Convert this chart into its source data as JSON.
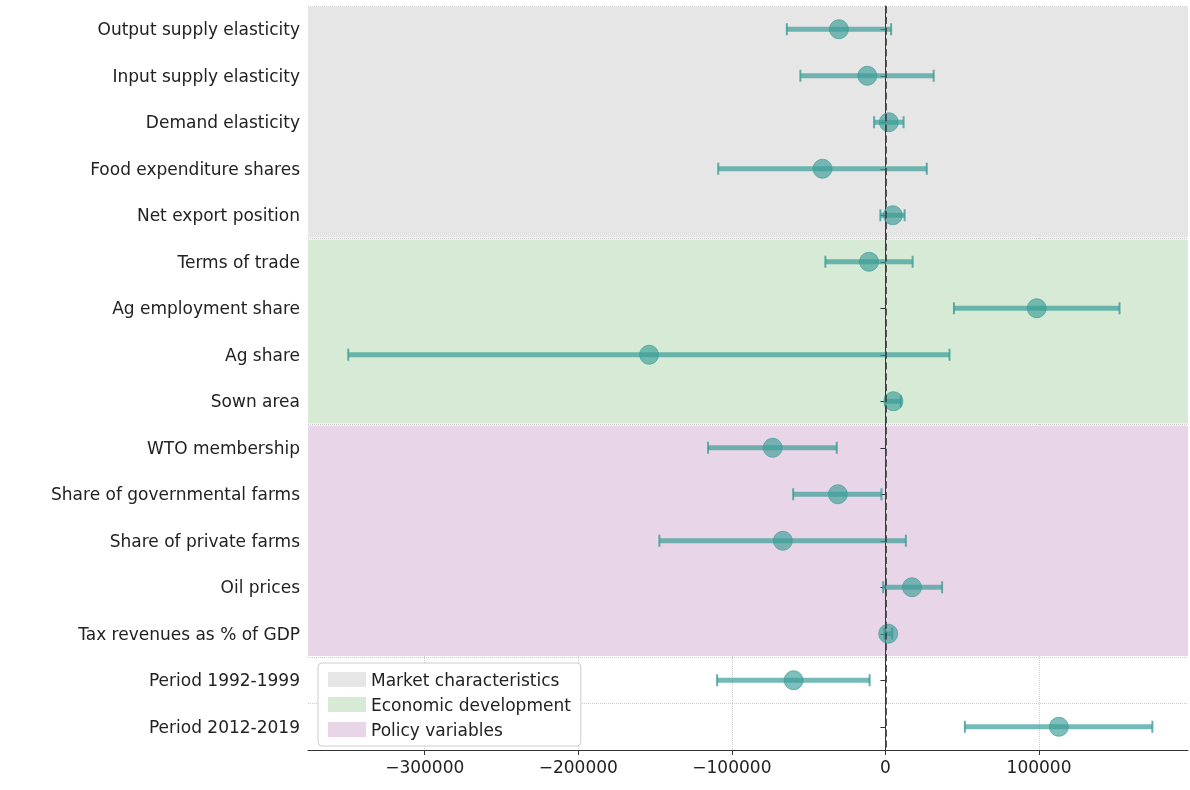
{
  "chart_data": {
    "type": "scatter",
    "orientation": "horizontal",
    "categories": [
      "Output supply elasticity",
      "Input supply elasticity",
      "Demand elasticity",
      "Food expenditure shares",
      "Net export position",
      "Terms of trade",
      "Ag employment share",
      "Ag share",
      "Sown area",
      "WTO membership",
      "Share of governmental farms",
      "Share of private farms",
      "Oil prices",
      "Tax revenues as % of GDP",
      "Period 1992-1999",
      "Period 2012-2019"
    ],
    "series": [
      {
        "color": "#3a9c97",
        "values": [
          -30300,
          -11800,
          2200,
          -41000,
          4800,
          -10700,
          98500,
          -153900,
          5200,
          -73400,
          -31000,
          -66800,
          17300,
          1800,
          -59800,
          112900
        ],
        "errors": [
          [
            -64200,
            3700
          ],
          [
            -55400,
            31400
          ],
          [
            -7400,
            11800
          ],
          [
            -108900,
            26900
          ],
          [
            -3300,
            12500
          ],
          [
            -39100,
            17700
          ],
          [
            44600,
            152400
          ],
          [
            -349800,
            41700
          ],
          [
            0,
            10000
          ],
          [
            -115500,
            -31700
          ],
          [
            -60100,
            -2600
          ],
          [
            -147200,
            13300
          ],
          [
            -1500,
            36900
          ],
          [
            -700,
            4400
          ],
          [
            -109600,
            -10300
          ],
          [
            51700,
            173800
          ]
        ]
      }
    ],
    "xlim": [
      -376000,
      197000
    ],
    "xticks": [
      -300000,
      -200000,
      -100000,
      0,
      100000
    ],
    "marker": "circle",
    "grid": true,
    "legend": "bottom left",
    "ref_lines": [
      {
        "axis": "x",
        "value": 0,
        "color": "#444444",
        "line_style": "dashed"
      }
    ],
    "bands": [
      {
        "axis": "y",
        "from": "Output supply elasticity",
        "to": "Net export position",
        "label": "Market characteristics",
        "color": "#e6e6e6"
      },
      {
        "axis": "y",
        "from": "Terms of trade",
        "to": "Sown area",
        "label": "Economic development",
        "color": "#d6ead6"
      },
      {
        "axis": "y",
        "from": "WTO membership",
        "to": "Tax revenues as % of GDP",
        "label": "Policy variables",
        "color": "#e8d6e8"
      }
    ]
  }
}
